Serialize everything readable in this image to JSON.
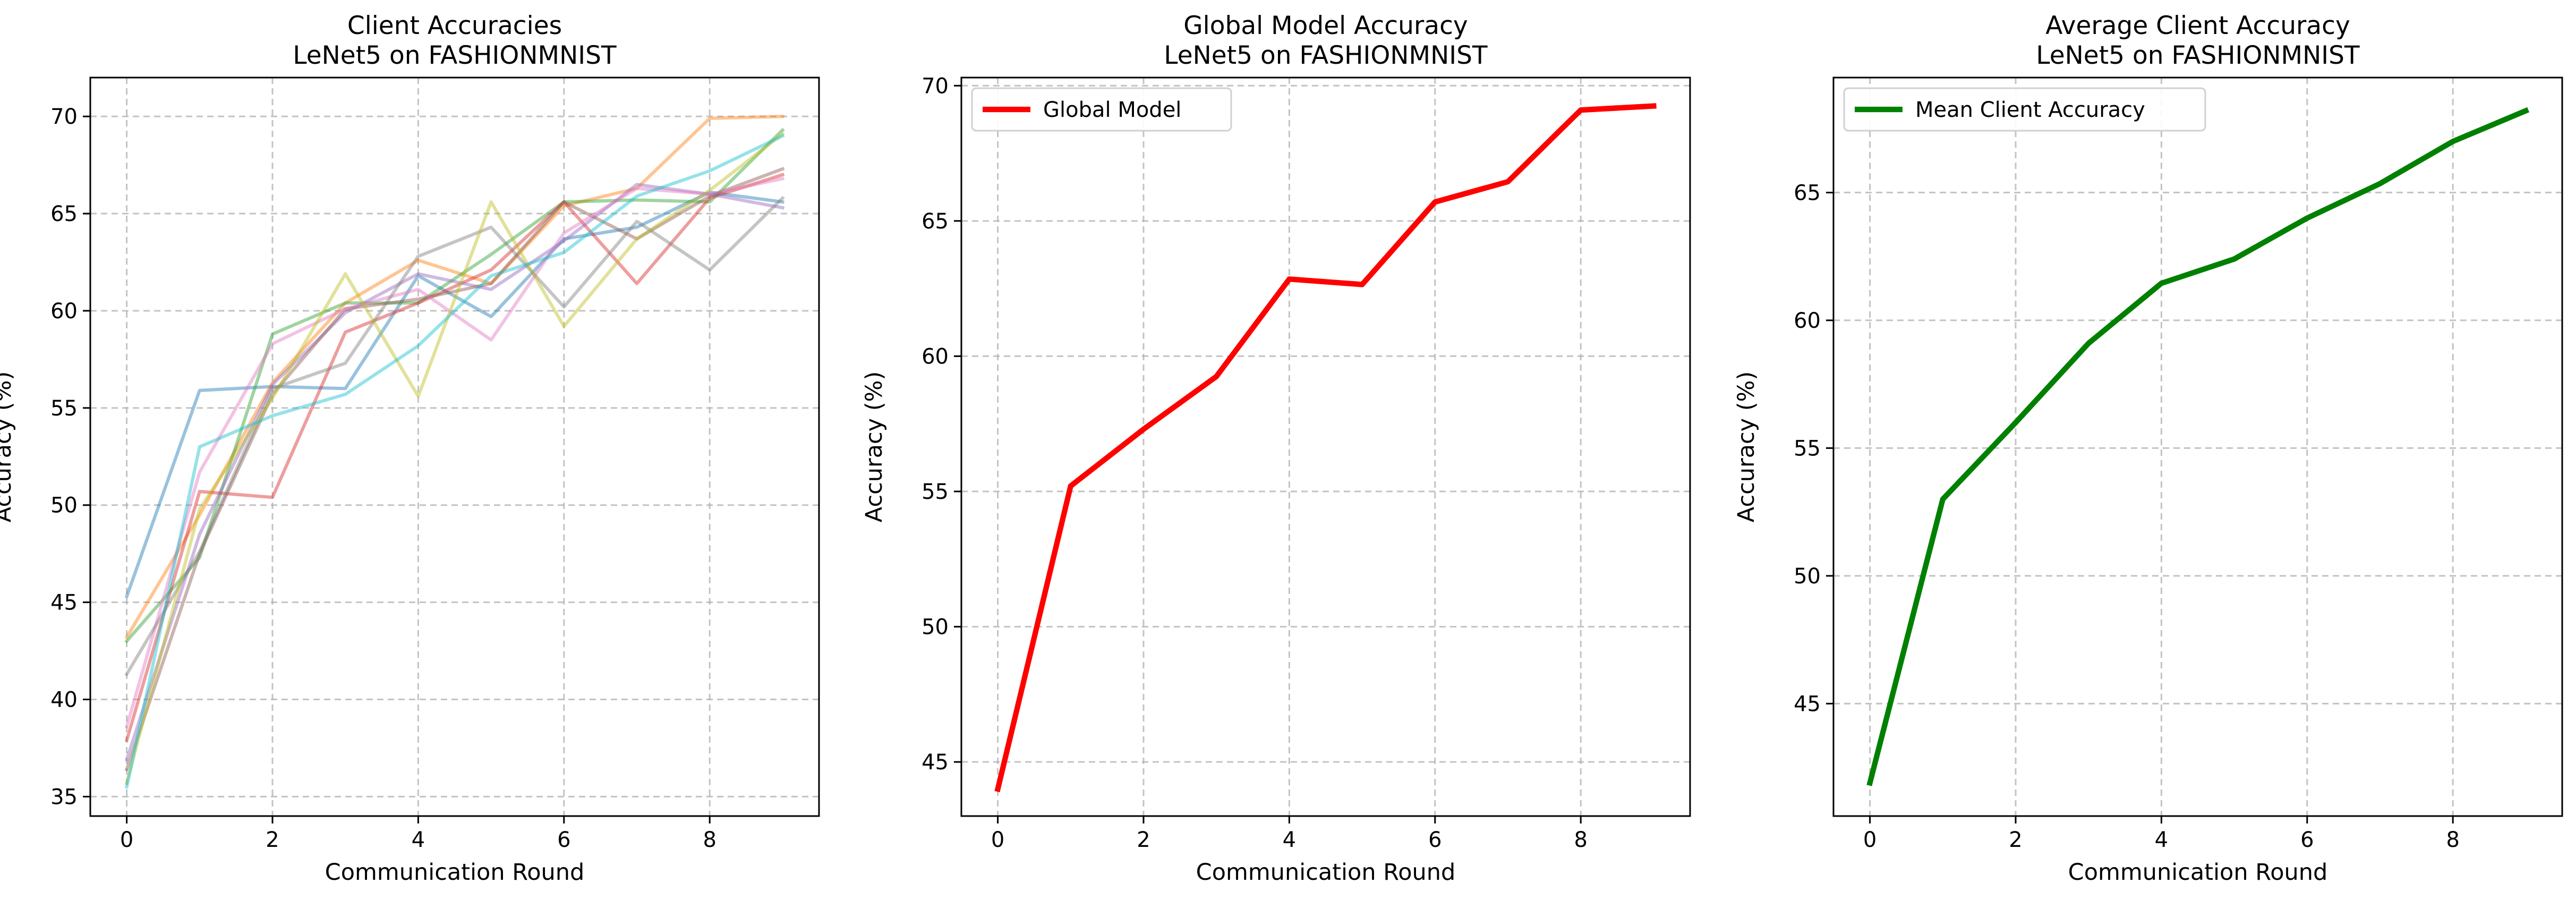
{
  "chart_data": [
    {
      "type": "line",
      "title": "Client Accuracies\nLeNet5 on FASHIONMNIST",
      "xlabel": "Communication Round",
      "ylabel": "Accuracy (%)",
      "xlim": [
        -0.5,
        9.5
      ],
      "ylim": [
        34,
        72
      ],
      "xticks": [
        0,
        2,
        4,
        6,
        8
      ],
      "yticks": [
        35,
        40,
        45,
        50,
        55,
        60,
        65,
        70
      ],
      "grid": true,
      "legend": "none",
      "line_width": 1.5,
      "line_opacity": 0.45,
      "x": [
        0,
        1,
        2,
        3,
        4,
        5,
        6,
        7,
        8,
        9
      ],
      "series": [
        {
          "color": "#1f77b4",
          "values": [
            45.3,
            55.9,
            56.1,
            56.0,
            61.8,
            59.7,
            63.7,
            64.3,
            66.1,
            65.6
          ]
        },
        {
          "color": "#ff7f0e",
          "values": [
            43.2,
            49.5,
            56.3,
            60.4,
            62.6,
            61.4,
            65.4,
            66.3,
            69.9,
            70.0
          ]
        },
        {
          "color": "#2ca02c",
          "values": [
            43.0,
            47.3,
            58.8,
            60.4,
            60.4,
            62.9,
            65.6,
            65.7,
            65.6,
            69.3
          ]
        },
        {
          "color": "#d62728",
          "values": [
            37.9,
            50.7,
            50.4,
            58.9,
            60.4,
            62.1,
            65.6,
            61.4,
            65.8,
            67.0
          ]
        },
        {
          "color": "#9467bd",
          "values": [
            36.9,
            48.5,
            56.2,
            59.9,
            61.9,
            61.1,
            63.6,
            66.5,
            66.0,
            65.3
          ]
        },
        {
          "color": "#8c564b",
          "values": [
            36.4,
            47.5,
            55.7,
            60.1,
            60.6,
            61.4,
            65.6,
            63.7,
            65.9,
            67.3
          ]
        },
        {
          "color": "#e377c2",
          "values": [
            38.6,
            51.7,
            58.3,
            60.1,
            61.1,
            58.5,
            64.0,
            66.3,
            66.0,
            66.8
          ]
        },
        {
          "color": "#7f7f7f",
          "values": [
            41.3,
            47.6,
            56.0,
            57.3,
            62.8,
            64.3,
            60.2,
            64.6,
            62.1,
            65.8
          ]
        },
        {
          "color": "#bcbd22",
          "values": [
            35.7,
            49.8,
            55.5,
            61.9,
            55.6,
            65.6,
            59.2,
            63.7,
            66.2,
            69.1
          ]
        },
        {
          "color": "#17becf",
          "values": [
            35.5,
            53.0,
            54.6,
            55.7,
            58.2,
            61.8,
            63.0,
            65.9,
            67.2,
            69.0
          ]
        }
      ]
    },
    {
      "type": "line",
      "title": "Global Model Accuracy\nLeNet5 on FASHIONMNIST",
      "xlabel": "Communication Round",
      "ylabel": "Accuracy (%)",
      "xlim": [
        -0.5,
        9.5
      ],
      "ylim": [
        43.0,
        70.3
      ],
      "xticks": [
        0,
        2,
        4,
        6,
        8
      ],
      "yticks": [
        45,
        50,
        55,
        60,
        65,
        70
      ],
      "grid": true,
      "legend": "upper left",
      "line_width": 2.5,
      "line_opacity": 1,
      "x": [
        0,
        1,
        2,
        3,
        4,
        5,
        6,
        7,
        8,
        9
      ],
      "series": [
        {
          "name": "Global Model",
          "color": "#ff0000",
          "values": [
            44.0,
            55.2,
            57.3,
            59.25,
            62.85,
            62.65,
            65.7,
            66.45,
            69.1,
            69.25
          ]
        }
      ]
    },
    {
      "type": "line",
      "title": "Average Client Accuracy\nLeNet5 on FASHIONMNIST",
      "xlabel": "Communication Round",
      "ylabel": "Accuracy (%)",
      "xlim": [
        -0.5,
        9.5
      ],
      "ylim": [
        40.6,
        69.5
      ],
      "xticks": [
        0,
        2,
        4,
        6,
        8
      ],
      "yticks": [
        45,
        50,
        55,
        60,
        65
      ],
      "grid": true,
      "legend": "upper left",
      "line_width": 2.5,
      "line_opacity": 1,
      "x": [
        0,
        1,
        2,
        3,
        4,
        5,
        6,
        7,
        8,
        9
      ],
      "series": [
        {
          "name": "Mean Client Accuracy",
          "color": "#008000",
          "values": [
            41.9,
            53.0,
            56.0,
            59.1,
            61.45,
            62.4,
            64.0,
            65.35,
            67.0,
            68.2
          ]
        }
      ]
    }
  ]
}
